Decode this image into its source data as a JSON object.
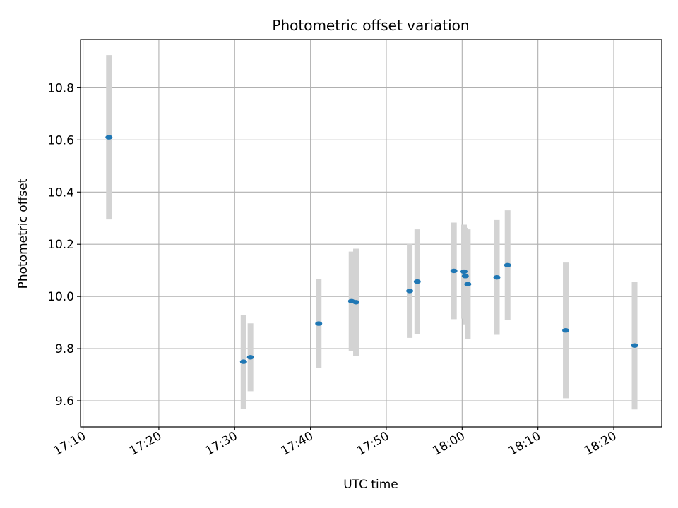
{
  "chart_data": {
    "type": "scatter",
    "title": "Photometric offset variation",
    "xlabel": "UTC time",
    "ylabel": "Photometric offset",
    "x_ticks": [
      "17:10",
      "17:20",
      "17:30",
      "17:40",
      "17:50",
      "18:00",
      "18:10",
      "18:20"
    ],
    "y_ticks": [
      "9.6",
      "9.8",
      "10.0",
      "10.2",
      "10.4",
      "10.6",
      "10.8"
    ],
    "xlim": [
      "17:09:40",
      "18:26:20"
    ],
    "ylim": [
      9.5,
      10.985
    ],
    "grid": true,
    "marker_color": "#1f77b4",
    "errorbar_color": "#d3d3d3",
    "points": [
      {
        "x": "17:13:25",
        "y": 10.61,
        "err": 0.315
      },
      {
        "x": "17:31:10",
        "y": 9.75,
        "err": 0.18
      },
      {
        "x": "17:32:05",
        "y": 9.767,
        "err": 0.13
      },
      {
        "x": "17:41:05",
        "y": 9.896,
        "err": 0.17
      },
      {
        "x": "17:45:25",
        "y": 9.982,
        "err": 0.19
      },
      {
        "x": "17:46:00",
        "y": 9.978,
        "err": 0.205
      },
      {
        "x": "17:53:05",
        "y": 10.021,
        "err": 0.18
      },
      {
        "x": "17:54:05",
        "y": 10.057,
        "err": 0.2
      },
      {
        "x": "17:58:55",
        "y": 10.098,
        "err": 0.185
      },
      {
        "x": "18:00:15",
        "y": 10.095,
        "err": 0.18
      },
      {
        "x": "18:00:25",
        "y": 10.078,
        "err": 0.185
      },
      {
        "x": "18:00:45",
        "y": 10.047,
        "err": 0.21
      },
      {
        "x": "18:04:35",
        "y": 10.073,
        "err": 0.22
      },
      {
        "x": "18:06:00",
        "y": 10.12,
        "err": 0.21
      },
      {
        "x": "18:13:40",
        "y": 9.87,
        "err": 0.26
      },
      {
        "x": "18:22:45",
        "y": 9.812,
        "err": 0.245
      }
    ]
  }
}
